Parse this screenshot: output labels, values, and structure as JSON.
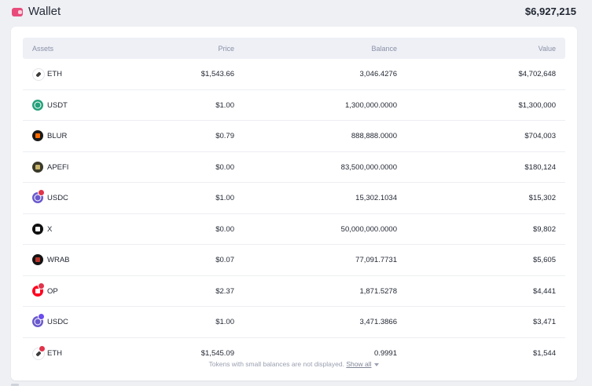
{
  "header": {
    "title": "Wallet",
    "total": "$6,927,215",
    "icon": "wallet-icon"
  },
  "table": {
    "columns": {
      "assets": "Assets",
      "price": "Price",
      "balance": "Balance",
      "value": "Value"
    },
    "rows": [
      {
        "symbol": "ETH",
        "price": "$1,543.66",
        "balance": "3,046.4276",
        "value": "$4,702,648",
        "icon": "eth-token-icon",
        "color": "#ffffff",
        "fg": "#3c3c3d"
      },
      {
        "symbol": "USDT",
        "price": "$1.00",
        "balance": "1,300,000.0000",
        "value": "$1,300,000",
        "icon": "usdt-token-icon",
        "color": "#26a17b",
        "fg": "#ffffff"
      },
      {
        "symbol": "BLUR",
        "price": "$0.79",
        "balance": "888,888.0000",
        "value": "$704,003",
        "icon": "blur-token-icon",
        "color": "#1a1a1a",
        "fg": "#ff6b00"
      },
      {
        "symbol": "APEFI",
        "price": "$0.00",
        "balance": "83,500,000.0000",
        "value": "$180,124",
        "icon": "apefi-token-icon",
        "color": "#3b3a2a",
        "fg": "#c8b46a"
      },
      {
        "symbol": "USDC",
        "price": "$1.00",
        "balance": "15,302.1034",
        "value": "$15,302",
        "icon": "usdc-token-icon",
        "color": "#6a5acd",
        "fg": "#ffffff",
        "badge": "red"
      },
      {
        "symbol": "X",
        "price": "$0.00",
        "balance": "50,000,000.0000",
        "value": "$9,802",
        "icon": "x-token-icon",
        "color": "#111111",
        "fg": "#ffffff"
      },
      {
        "symbol": "WRAB",
        "price": "$0.07",
        "balance": "77,091.7731",
        "value": "$5,605",
        "icon": "wrab-token-icon",
        "color": "#141414",
        "fg": "#b9342b"
      },
      {
        "symbol": "OP",
        "price": "$2.37",
        "balance": "1,871.5278",
        "value": "$4,441",
        "icon": "op-token-icon",
        "color": "#ff0420",
        "fg": "#ffffff",
        "badge": "red"
      },
      {
        "symbol": "USDC",
        "price": "$1.00",
        "balance": "3,471.3866",
        "value": "$3,471",
        "icon": "usdc-token-icon",
        "color": "#6a5acd",
        "fg": "#ffffff",
        "badge": "blue"
      },
      {
        "symbol": "ETH",
        "price": "$1,545.09",
        "balance": "0.9991",
        "value": "$1,544",
        "icon": "eth-token-icon",
        "color": "#ffffff",
        "fg": "#3c3c3d",
        "badge": "red"
      }
    ]
  },
  "footer": {
    "note": "Tokens with small balances are not displayed.",
    "show_all": "Show all"
  }
}
